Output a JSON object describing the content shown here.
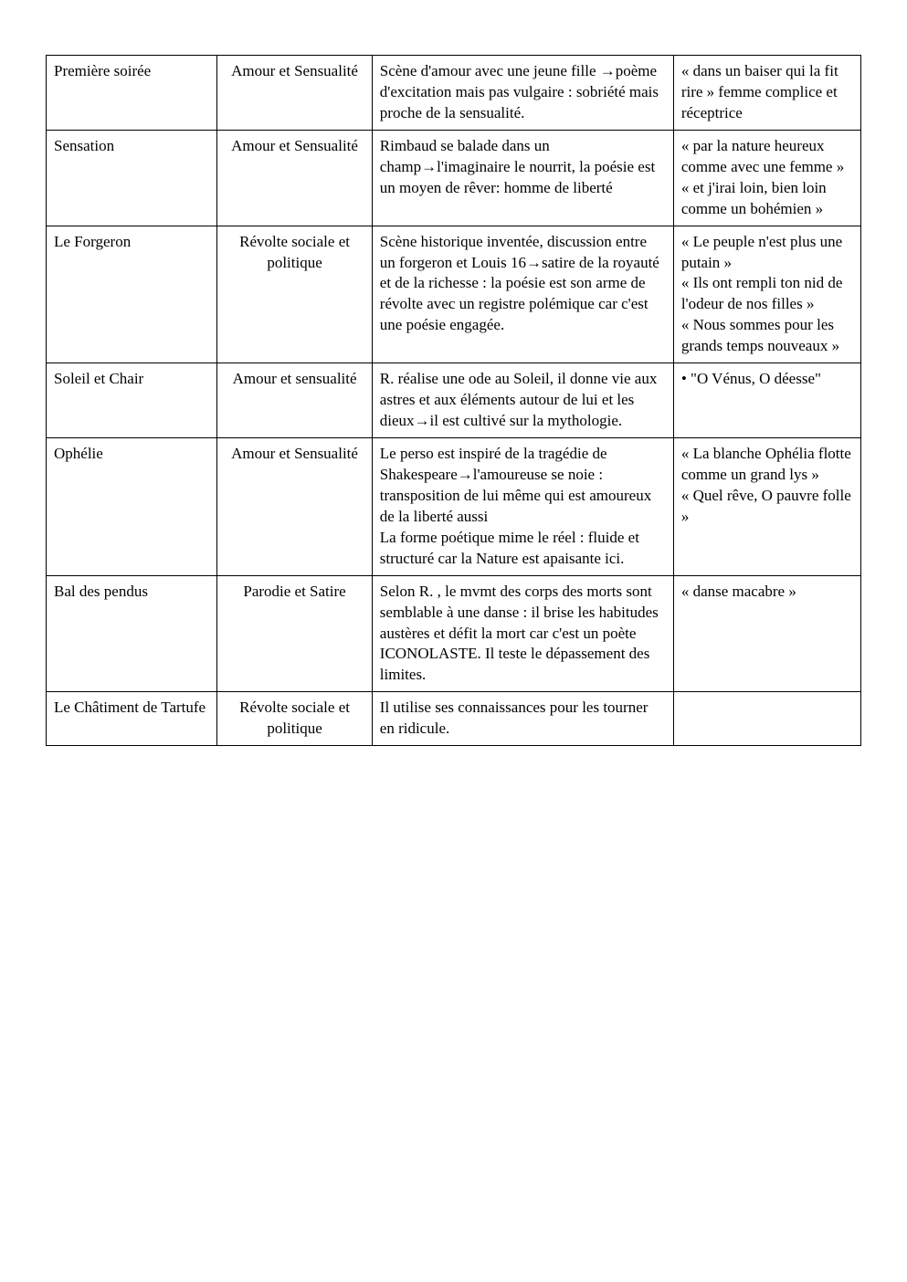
{
  "table": {
    "columns": [
      "title",
      "theme",
      "analysis",
      "quote"
    ],
    "col_classes": [
      "",
      "center",
      "",
      ""
    ],
    "rows": [
      {
        "title": "Première soirée",
        "theme": "Amour et Sensualité",
        "analysis": "Scène d'amour avec une jeune fille →poème d'excitation mais pas vulgaire : sobriété mais proche de la sensualité.",
        "quote": "« dans un baiser qui la fit rire » femme complice et réceptrice"
      },
      {
        "title": "Sensation",
        "theme": "Amour et Sensualité",
        "analysis": "Rimbaud se balade dans un champ→l'imaginaire le nourrit, la poésie est un moyen de rêver: homme de liberté",
        "quote": "« par la nature heureux comme avec une femme »\n« et j'irai loin, bien loin comme un bohémien »"
      },
      {
        "title": "Le Forgeron",
        "theme": "Révolte sociale et politique",
        "analysis": "Scène historique inventée, discussion entre un forgeron et Louis 16→satire de la royauté et de la richesse : la poésie est  son arme de révolte avec un registre polémique car c'est une poésie engagée.\n",
        "quote": "« Le peuple n'est plus une putain »\n« Ils ont rempli ton nid de l'odeur de nos filles »\n« Nous sommes pour les grands temps nouveaux »"
      },
      {
        "title": "Soleil et Chair",
        "theme": "Amour et sensualité",
        "analysis": "R. réalise une ode au Soleil, il donne vie aux astres et aux éléments autour de  lui et les dieux→il est cultivé sur la mythologie.",
        "quote": "• \"O Vénus, O déesse\""
      },
      {
        "title": "Ophélie",
        "theme": "Amour et Sensualité",
        "analysis": "Le perso est inspiré de la tragédie de Shakespeare→l'amoureuse se noie : transposition de lui même qui est amoureux de la liberté aussi\nLa forme poétique mime le réel : fluide et structuré car la Nature est apaisante ici.",
        "quote": "« La blanche Ophélia flotte comme un grand lys »\n« Quel rêve, O pauvre folle »"
      },
      {
        "title": "Bal des pendus",
        "theme": "Parodie et Satire",
        "analysis": "Selon R. , le mvmt des corps des morts sont semblable à une danse : il brise les habitudes austères et défit la mort car c'est un poète ICONOLASTE. Il teste le dépassement des limites.",
        "quote": "« danse macabre »"
      },
      {
        "title": "Le Châtiment de Tartufe",
        "theme": "Révolte sociale et politique",
        "analysis": "Il utilise ses connaissances pour les tourner en ridicule.",
        "quote": ""
      }
    ]
  },
  "style": {
    "background_color": "#ffffff",
    "border_color": "#000000",
    "font_family": "Times New Roman",
    "font_size_pt": 13,
    "text_color": "#000000"
  }
}
